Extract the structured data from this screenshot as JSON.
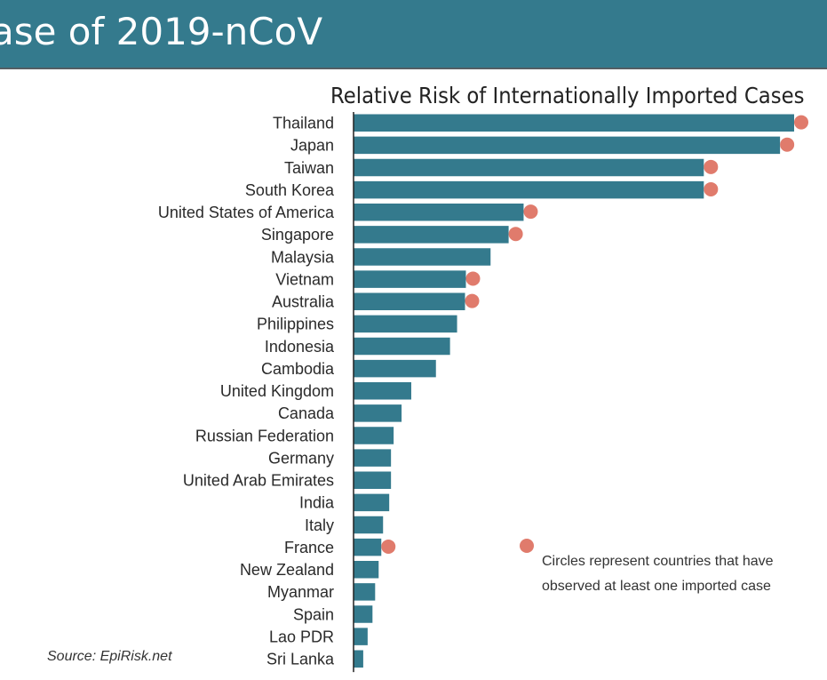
{
  "header": {
    "title": "ase of 2019-nCoV"
  },
  "colors": {
    "banner": "#347a8d",
    "bar": "#347a8d",
    "dot": "#e07b6c"
  },
  "chart_data": {
    "type": "bar",
    "orientation": "horizontal",
    "title": "Relative Risk of Internationally Imported Cases",
    "xlabel": "",
    "ylabel": "",
    "xlim": [
      0,
      100
    ],
    "categories": [
      "Thailand",
      "Japan",
      "Taiwan",
      "South Korea",
      "United States of America",
      "Singapore",
      "Malaysia",
      "Vietnam",
      "Australia",
      "Philippines",
      "Indonesia",
      "Cambodia",
      "United Kingdom",
      "Canada",
      "Russian Federation",
      "Germany",
      "United Arab Emirates",
      "India",
      "Italy",
      "France",
      "New Zealand",
      "Myanmar",
      "Spain",
      "Lao PDR",
      "Sri Lanka"
    ],
    "values": [
      100,
      96.8,
      79.5,
      79.5,
      38.6,
      35.2,
      31.1,
      25.5,
      25.3,
      23.5,
      21.9,
      18.7,
      13.1,
      10.9,
      9.1,
      8.5,
      8.5,
      8.1,
      6.7,
      6.3,
      5.7,
      4.9,
      4.3,
      3.2,
      2.2
    ],
    "imported_case_observed": [
      true,
      true,
      true,
      true,
      true,
      true,
      false,
      true,
      true,
      false,
      false,
      false,
      false,
      false,
      false,
      false,
      false,
      false,
      false,
      true,
      false,
      false,
      false,
      false,
      false
    ],
    "legend": "Circles represent countries that have observed at least one imported case",
    "legend_position": "bottom-right"
  },
  "source": "Source: EpiRisk.net"
}
